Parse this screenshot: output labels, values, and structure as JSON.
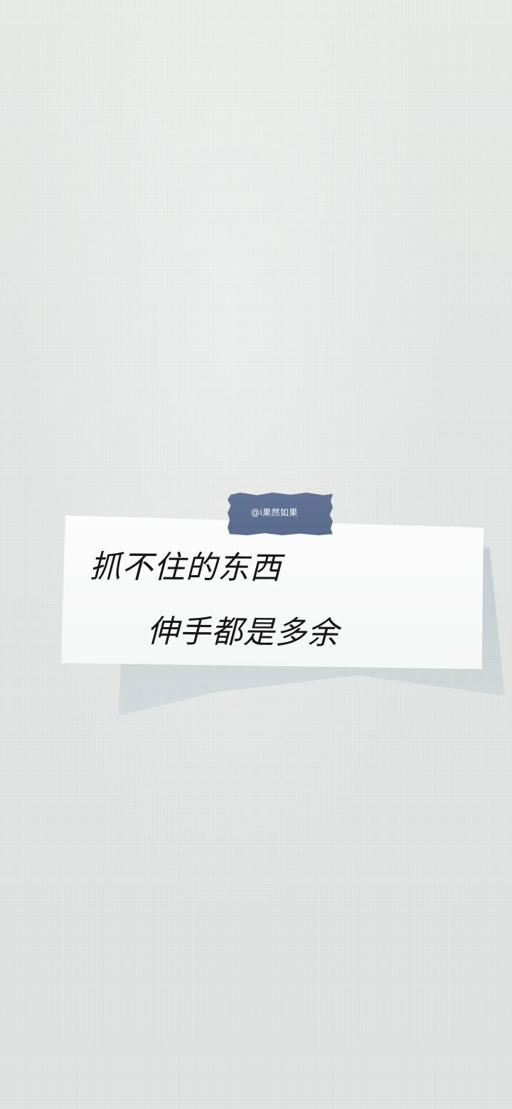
{
  "tape_text": "@i果然如果",
  "note": {
    "line1": "抓不住的东西",
    "line2": "伸手都是多余"
  },
  "colors": {
    "wall": "#e3e7e5",
    "paper": "#f8f9f8",
    "tape": "#596b8d",
    "ink": "#161616"
  }
}
